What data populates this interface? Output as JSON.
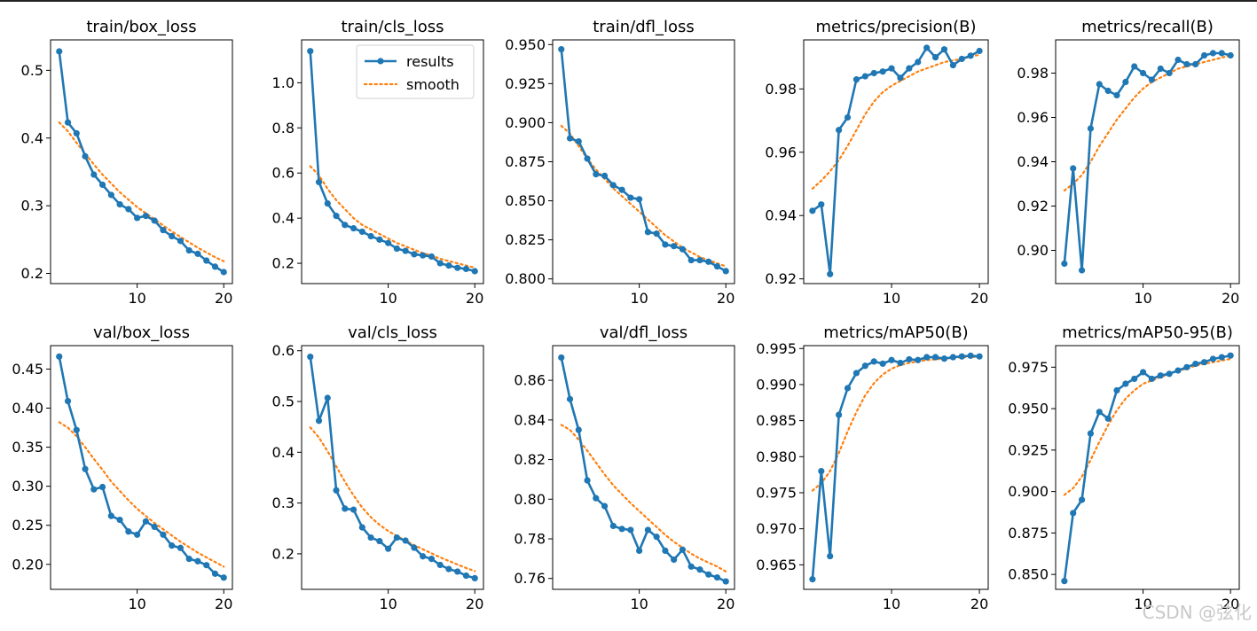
{
  "watermark": "CSDN @弦化",
  "colors": {
    "results": "#1f77b4",
    "smooth": "#ff7f0e"
  },
  "legend": {
    "results_label": "results",
    "smooth_label": "smooth"
  },
  "chart_data": [
    {
      "type": "line",
      "title": "train/box_loss",
      "x": [
        1,
        2,
        3,
        4,
        5,
        6,
        7,
        8,
        9,
        10,
        11,
        12,
        13,
        14,
        15,
        16,
        17,
        18,
        19,
        20
      ],
      "series": [
        {
          "name": "results",
          "values": [
            0.528,
            0.423,
            0.407,
            0.373,
            0.346,
            0.331,
            0.316,
            0.302,
            0.295,
            0.282,
            0.285,
            0.278,
            0.264,
            0.255,
            0.248,
            0.234,
            0.229,
            0.219,
            0.21,
            0.202
          ]
        },
        {
          "name": "smooth",
          "values": [
            0.423,
            0.41,
            0.393,
            0.377,
            0.361,
            0.346,
            0.333,
            0.32,
            0.309,
            0.298,
            0.289,
            0.28,
            0.271,
            0.262,
            0.254,
            0.246,
            0.238,
            0.231,
            0.224,
            0.218
          ]
        }
      ],
      "xlim": [
        0,
        21
      ],
      "ylim": [
        0.185,
        0.545
      ],
      "xticks": [
        10,
        20
      ],
      "yticks": [
        0.2,
        0.3,
        0.4,
        0.5
      ],
      "ytick_labels": [
        "0.2",
        "0.3",
        "0.4",
        "0.5"
      ],
      "xtick_labels": [
        "10",
        "20"
      ]
    },
    {
      "type": "line",
      "title": "train/cls_loss",
      "x": [
        1,
        2,
        3,
        4,
        5,
        6,
        7,
        8,
        9,
        10,
        11,
        12,
        13,
        14,
        15,
        16,
        17,
        18,
        19,
        20
      ],
      "series": [
        {
          "name": "results",
          "values": [
            1.14,
            0.56,
            0.465,
            0.41,
            0.37,
            0.355,
            0.34,
            0.32,
            0.305,
            0.29,
            0.265,
            0.255,
            0.24,
            0.235,
            0.23,
            0.2,
            0.19,
            0.18,
            0.175,
            0.165
          ]
        },
        {
          "name": "smooth",
          "values": [
            0.63,
            0.59,
            0.53,
            0.48,
            0.44,
            0.4,
            0.37,
            0.35,
            0.33,
            0.31,
            0.29,
            0.275,
            0.26,
            0.245,
            0.235,
            0.22,
            0.21,
            0.2,
            0.19,
            0.18
          ]
        }
      ],
      "xlim": [
        0,
        21
      ],
      "ylim": [
        0.11,
        1.19
      ],
      "xticks": [
        10,
        20
      ],
      "yticks": [
        0.2,
        0.4,
        0.6,
        0.8,
        1.0
      ],
      "ytick_labels": [
        "0.2",
        "0.4",
        "0.6",
        "0.8",
        "1.0"
      ],
      "xtick_labels": [
        "10",
        "20"
      ],
      "legend_position": "top-right"
    },
    {
      "type": "line",
      "title": "train/dfl_loss",
      "x": [
        1,
        2,
        3,
        4,
        5,
        6,
        7,
        8,
        9,
        10,
        11,
        12,
        13,
        14,
        15,
        16,
        17,
        18,
        19,
        20
      ],
      "series": [
        {
          "name": "results",
          "values": [
            0.947,
            0.89,
            0.888,
            0.877,
            0.867,
            0.866,
            0.86,
            0.857,
            0.852,
            0.851,
            0.83,
            0.829,
            0.822,
            0.821,
            0.819,
            0.812,
            0.812,
            0.811,
            0.808,
            0.805
          ]
        },
        {
          "name": "smooth",
          "values": [
            0.898,
            0.893,
            0.885,
            0.877,
            0.87,
            0.864,
            0.858,
            0.853,
            0.848,
            0.843,
            0.838,
            0.833,
            0.828,
            0.824,
            0.82,
            0.817,
            0.814,
            0.812,
            0.81,
            0.808
          ]
        }
      ],
      "xlim": [
        0,
        21
      ],
      "ylim": [
        0.797,
        0.953
      ],
      "xticks": [
        10,
        20
      ],
      "yticks": [
        0.8,
        0.825,
        0.85,
        0.875,
        0.9,
        0.925,
        0.95
      ],
      "ytick_labels": [
        "0.800",
        "0.825",
        "0.850",
        "0.875",
        "0.900",
        "0.925",
        "0.950"
      ],
      "xtick_labels": [
        "10",
        "20"
      ]
    },
    {
      "type": "line",
      "title": "metrics/precision(B)",
      "x": [
        1,
        2,
        3,
        4,
        5,
        6,
        7,
        8,
        9,
        10,
        11,
        12,
        13,
        14,
        15,
        16,
        17,
        18,
        19,
        20
      ],
      "series": [
        {
          "name": "results",
          "values": [
            0.9415,
            0.9435,
            0.9215,
            0.967,
            0.971,
            0.983,
            0.984,
            0.985,
            0.9855,
            0.9865,
            0.9835,
            0.9865,
            0.9885,
            0.993,
            0.99,
            0.9925,
            0.9875,
            0.9895,
            0.9905,
            0.992
          ]
        },
        {
          "name": "smooth",
          "values": [
            0.9485,
            0.951,
            0.954,
            0.9575,
            0.962,
            0.967,
            0.972,
            0.976,
            0.979,
            0.981,
            0.9825,
            0.984,
            0.9855,
            0.9865,
            0.9875,
            0.9885,
            0.989,
            0.9895,
            0.9902,
            0.9908
          ]
        }
      ],
      "xlim": [
        0,
        21
      ],
      "ylim": [
        0.9185,
        0.9955
      ],
      "xticks": [
        10,
        20
      ],
      "yticks": [
        0.92,
        0.94,
        0.96,
        0.98
      ],
      "ytick_labels": [
        "0.92",
        "0.94",
        "0.96",
        "0.98"
      ],
      "xtick_labels": [
        "10",
        "20"
      ]
    },
    {
      "type": "line",
      "title": "metrics/recall(B)",
      "x": [
        1,
        2,
        3,
        4,
        5,
        6,
        7,
        8,
        9,
        10,
        11,
        12,
        13,
        14,
        15,
        16,
        17,
        18,
        19,
        20
      ],
      "series": [
        {
          "name": "results",
          "values": [
            0.894,
            0.937,
            0.891,
            0.955,
            0.975,
            0.972,
            0.97,
            0.976,
            0.983,
            0.98,
            0.977,
            0.982,
            0.98,
            0.986,
            0.984,
            0.984,
            0.988,
            0.989,
            0.989,
            0.988
          ]
        },
        {
          "name": "smooth",
          "values": [
            0.927,
            0.93,
            0.934,
            0.94,
            0.947,
            0.953,
            0.959,
            0.964,
            0.969,
            0.973,
            0.976,
            0.978,
            0.98,
            0.982,
            0.983,
            0.984,
            0.985,
            0.986,
            0.987,
            0.988
          ]
        }
      ],
      "xlim": [
        0,
        21
      ],
      "ylim": [
        0.885,
        0.995
      ],
      "xticks": [
        10,
        20
      ],
      "yticks": [
        0.9,
        0.92,
        0.94,
        0.96,
        0.98
      ],
      "ytick_labels": [
        "0.90",
        "0.92",
        "0.94",
        "0.96",
        "0.98"
      ],
      "xtick_labels": [
        "10",
        "20"
      ]
    },
    {
      "type": "line",
      "title": "val/box_loss",
      "x": [
        1,
        2,
        3,
        4,
        5,
        6,
        7,
        8,
        9,
        10,
        11,
        12,
        13,
        14,
        15,
        16,
        17,
        18,
        19,
        20
      ],
      "series": [
        {
          "name": "results",
          "values": [
            0.466,
            0.409,
            0.372,
            0.322,
            0.296,
            0.299,
            0.262,
            0.257,
            0.242,
            0.238,
            0.255,
            0.248,
            0.238,
            0.224,
            0.221,
            0.207,
            0.204,
            0.199,
            0.188,
            0.183
          ]
        },
        {
          "name": "smooth",
          "values": [
            0.382,
            0.375,
            0.364,
            0.35,
            0.335,
            0.321,
            0.306,
            0.294,
            0.282,
            0.271,
            0.262,
            0.253,
            0.245,
            0.237,
            0.229,
            0.222,
            0.215,
            0.209,
            0.203,
            0.197
          ]
        }
      ],
      "xlim": [
        0,
        21
      ],
      "ylim": [
        0.168,
        0.48
      ],
      "xticks": [
        10,
        20
      ],
      "yticks": [
        0.2,
        0.25,
        0.3,
        0.35,
        0.4,
        0.45
      ],
      "ytick_labels": [
        "0.20",
        "0.25",
        "0.30",
        "0.35",
        "0.40",
        "0.45"
      ],
      "xtick_labels": [
        "10",
        "20"
      ]
    },
    {
      "type": "line",
      "title": "val/cls_loss",
      "x": [
        1,
        2,
        3,
        4,
        5,
        6,
        7,
        8,
        9,
        10,
        11,
        12,
        13,
        14,
        15,
        16,
        17,
        18,
        19,
        20
      ],
      "series": [
        {
          "name": "results",
          "values": [
            0.588,
            0.462,
            0.507,
            0.325,
            0.289,
            0.287,
            0.252,
            0.232,
            0.225,
            0.21,
            0.232,
            0.226,
            0.212,
            0.195,
            0.19,
            0.178,
            0.17,
            0.165,
            0.157,
            0.152
          ]
        },
        {
          "name": "smooth",
          "values": [
            0.449,
            0.429,
            0.402,
            0.372,
            0.342,
            0.315,
            0.291,
            0.272,
            0.257,
            0.245,
            0.235,
            0.226,
            0.217,
            0.209,
            0.201,
            0.193,
            0.186,
            0.179,
            0.172,
            0.166
          ]
        }
      ],
      "xlim": [
        0,
        21
      ],
      "ylim": [
        0.13,
        0.61
      ],
      "xticks": [
        10,
        20
      ],
      "yticks": [
        0.2,
        0.3,
        0.4,
        0.5,
        0.6
      ],
      "ytick_labels": [
        "0.2",
        "0.3",
        "0.4",
        "0.5",
        "0.6"
      ],
      "xtick_labels": [
        "10",
        "20"
      ]
    },
    {
      "type": "line",
      "title": "val/dfl_loss",
      "x": [
        1,
        2,
        3,
        4,
        5,
        6,
        7,
        8,
        9,
        10,
        11,
        12,
        13,
        14,
        15,
        16,
        17,
        18,
        19,
        20
      ],
      "series": [
        {
          "name": "results",
          "values": [
            0.8715,
            0.8505,
            0.835,
            0.8095,
            0.8005,
            0.7965,
            0.7865,
            0.785,
            0.7845,
            0.774,
            0.7845,
            0.781,
            0.774,
            0.7695,
            0.7745,
            0.766,
            0.7645,
            0.762,
            0.7605,
            0.7585
          ]
        },
        {
          "name": "smooth",
          "values": [
            0.8375,
            0.835,
            0.83,
            0.8245,
            0.8185,
            0.8125,
            0.807,
            0.8025,
            0.798,
            0.794,
            0.79,
            0.786,
            0.782,
            0.7785,
            0.7755,
            0.7725,
            0.77,
            0.768,
            0.766,
            0.7635
          ]
        }
      ],
      "xlim": [
        0,
        21
      ],
      "ylim": [
        0.7545,
        0.8775
      ],
      "xticks": [
        10,
        20
      ],
      "yticks": [
        0.76,
        0.78,
        0.8,
        0.82,
        0.84,
        0.86
      ],
      "ytick_labels": [
        "0.76",
        "0.78",
        "0.80",
        "0.82",
        "0.84",
        "0.86"
      ],
      "xtick_labels": [
        "10",
        "20"
      ]
    },
    {
      "type": "line",
      "title": "metrics/mAP50(B)",
      "x": [
        1,
        2,
        3,
        4,
        5,
        6,
        7,
        8,
        9,
        10,
        11,
        12,
        13,
        14,
        15,
        16,
        17,
        18,
        19,
        20
      ],
      "series": [
        {
          "name": "results",
          "values": [
            0.963,
            0.978,
            0.9662,
            0.9858,
            0.9895,
            0.9916,
            0.9926,
            0.9932,
            0.9929,
            0.9934,
            0.993,
            0.9935,
            0.9934,
            0.9938,
            0.9938,
            0.9936,
            0.9938,
            0.9939,
            0.994,
            0.9939
          ]
        },
        {
          "name": "smooth",
          "values": [
            0.9753,
            0.9763,
            0.978,
            0.9805,
            0.9835,
            0.9862,
            0.9885,
            0.9902,
            0.9914,
            0.9922,
            0.9927,
            0.993,
            0.9932,
            0.9934,
            0.9935,
            0.9936,
            0.9937,
            0.9938,
            0.9938,
            0.9939
          ]
        }
      ],
      "xlim": [
        0,
        21
      ],
      "ylim": [
        0.9616,
        0.9954
      ],
      "xticks": [
        10,
        20
      ],
      "yticks": [
        0.965,
        0.97,
        0.975,
        0.98,
        0.985,
        0.99,
        0.995
      ],
      "ytick_labels": [
        "0.965",
        "0.970",
        "0.975",
        "0.980",
        "0.985",
        "0.990",
        "0.995"
      ],
      "xtick_labels": [
        "10",
        "20"
      ]
    },
    {
      "type": "line",
      "title": "metrics/mAP50-95(B)",
      "x": [
        1,
        2,
        3,
        4,
        5,
        6,
        7,
        8,
        9,
        10,
        11,
        12,
        13,
        14,
        15,
        16,
        17,
        18,
        19,
        20
      ],
      "series": [
        {
          "name": "results",
          "values": [
            0.846,
            0.887,
            0.895,
            0.935,
            0.948,
            0.944,
            0.961,
            0.965,
            0.968,
            0.972,
            0.968,
            0.97,
            0.971,
            0.973,
            0.975,
            0.977,
            0.978,
            0.98,
            0.981,
            0.982
          ]
        },
        {
          "name": "smooth",
          "values": [
            0.898,
            0.902,
            0.909,
            0.919,
            0.93,
            0.94,
            0.949,
            0.956,
            0.961,
            0.965,
            0.967,
            0.969,
            0.971,
            0.973,
            0.974,
            0.976,
            0.977,
            0.978,
            0.979,
            0.98
          ]
        }
      ],
      "xlim": [
        0,
        21
      ],
      "ylim": [
        0.841,
        0.988
      ],
      "xticks": [
        10,
        20
      ],
      "yticks": [
        0.85,
        0.875,
        0.9,
        0.925,
        0.95,
        0.975
      ],
      "ytick_labels": [
        "0.850",
        "0.875",
        "0.900",
        "0.925",
        "0.950",
        "0.975"
      ],
      "xtick_labels": [
        "10",
        "20"
      ]
    }
  ]
}
